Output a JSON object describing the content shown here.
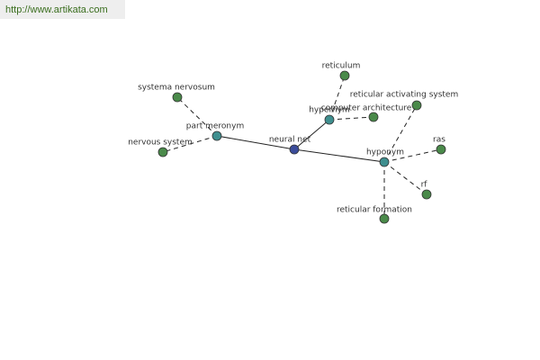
{
  "header": {
    "url": "http://www.artikata.com"
  },
  "nodes": [
    {
      "label": "neural net"
    },
    {
      "label": "part meronym"
    },
    {
      "label": "systema nervosum"
    },
    {
      "label": "nervous system"
    },
    {
      "label": "hypernym"
    },
    {
      "label": "reticulum"
    },
    {
      "label": "computer architecture"
    },
    {
      "label": "hyponym"
    },
    {
      "label": "reticular activating system"
    },
    {
      "label": "ras"
    },
    {
      "label": "rf"
    },
    {
      "label": "reticular formation"
    }
  ]
}
